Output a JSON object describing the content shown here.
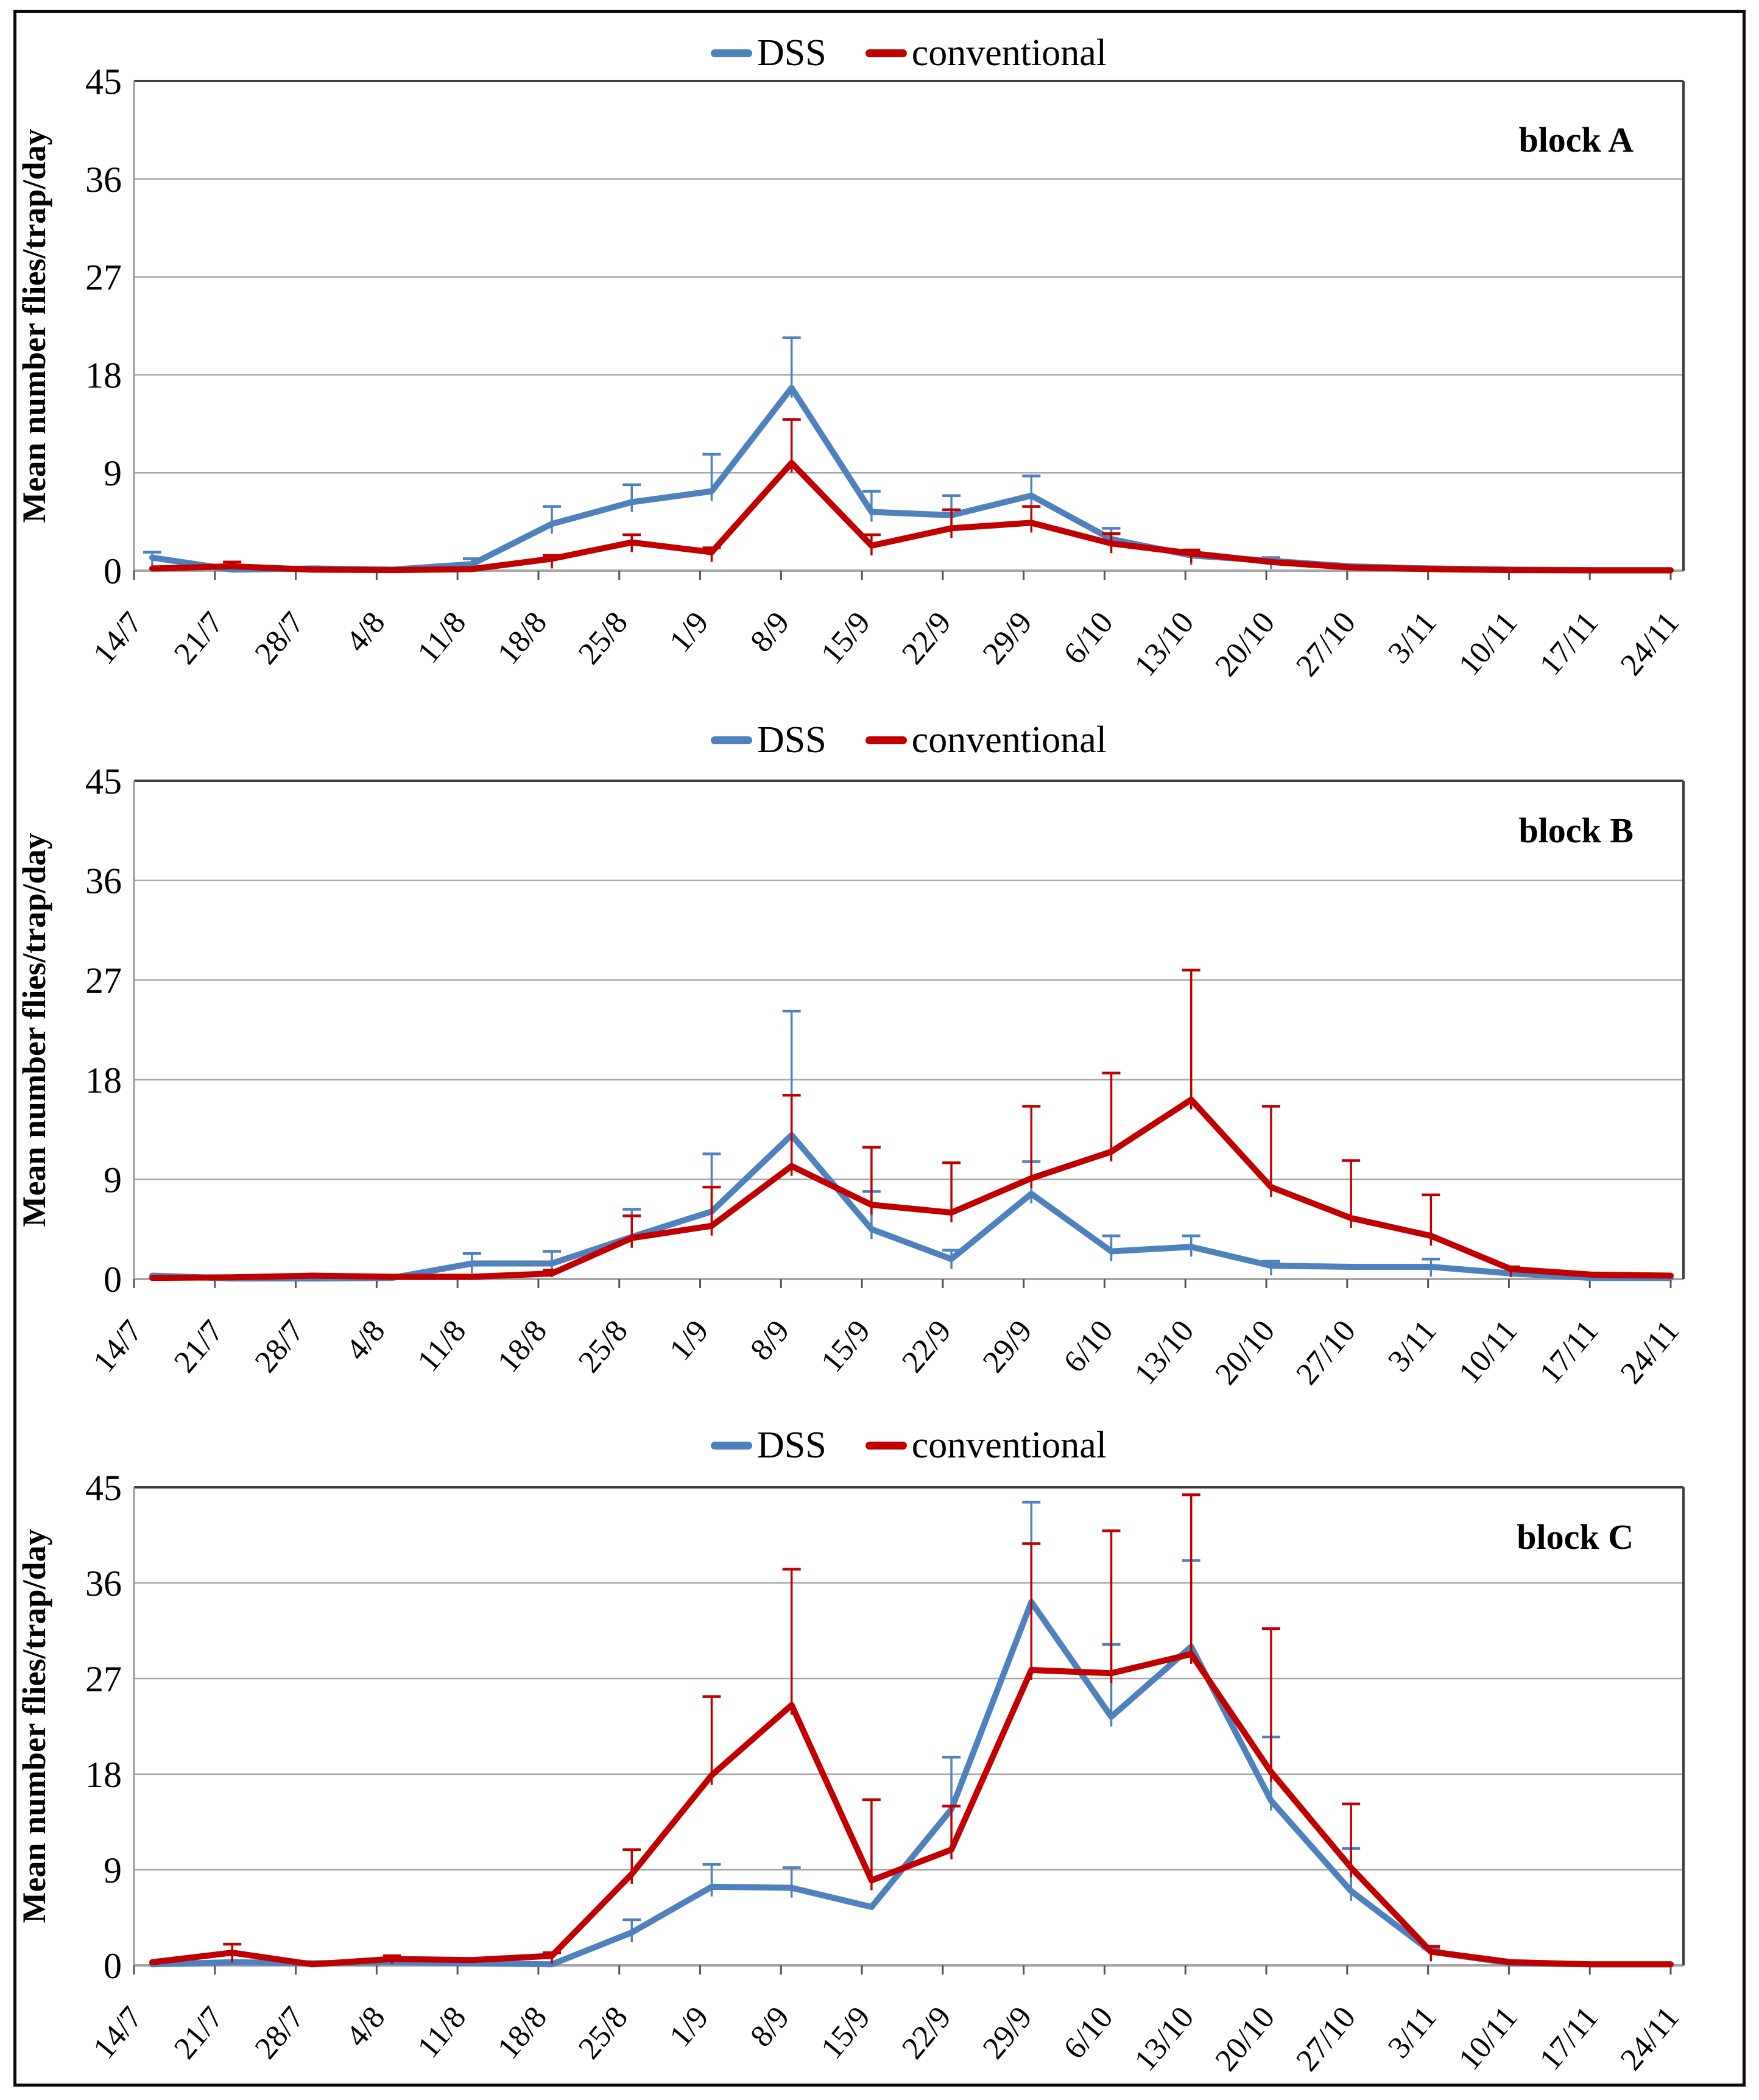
{
  "legend": {
    "dss_label": "DSS",
    "conventional_label": "conventional"
  },
  "colors": {
    "dss": "#4F81BD",
    "conventional": "#C00000",
    "gridline": "#A6A6A6",
    "axis_dark": "#3F3F3F",
    "axis_grey": "#999999",
    "tick": "#555555"
  },
  "y_axis": {
    "title": "Mean number flies/trap/day",
    "ticks": [
      0,
      9,
      18,
      27,
      36,
      45
    ],
    "max": 45
  },
  "chart_data": [
    {
      "type": "line",
      "block_label": "block A",
      "ylabel": "Mean number flies/trap/day",
      "ylim": [
        0,
        45
      ],
      "yticks": [
        0,
        9,
        18,
        27,
        36,
        45
      ],
      "grid": "horizontal",
      "legend_position": "top",
      "categories": [
        "14/7",
        "21/7",
        "28/7",
        "4/8",
        "11/8",
        "18/8",
        "25/8",
        "1/9",
        "8/9",
        "15/9",
        "22/9",
        "29/9",
        "6/10",
        "13/10",
        "20/10",
        "27/10",
        "3/11",
        "10/11",
        "17/11",
        "24/11"
      ],
      "series": [
        {
          "name": "DSS",
          "color": "#4F81BD",
          "values": [
            1.2,
            0.1,
            0.2,
            0.1,
            0.6,
            4.3,
            6.3,
            7.3,
            16.8,
            5.4,
            5.1,
            6.9,
            2.9,
            1.4,
            0.9,
            0.4,
            0.2,
            0.1,
            0.05,
            0.05
          ],
          "err_upper": [
            1.7,
            0.2,
            0.3,
            0.15,
            1.1,
            5.9,
            7.9,
            10.7,
            21.4,
            7.3,
            6.9,
            8.7,
            3.9,
            1.7,
            1.2,
            0.5,
            0.25,
            0.1,
            0.05,
            0.05
          ]
        },
        {
          "name": "conventional",
          "color": "#C00000",
          "values": [
            0.2,
            0.4,
            0.1,
            0.05,
            0.15,
            1.1,
            2.6,
            1.7,
            9.9,
            2.3,
            3.9,
            4.4,
            2.5,
            1.6,
            0.8,
            0.3,
            0.15,
            0.05,
            0.03,
            0.03
          ],
          "err_upper": [
            0.3,
            0.8,
            0.15,
            0.05,
            0.2,
            1.4,
            3.3,
            2.1,
            13.9,
            3.3,
            5.6,
            5.9,
            3.4,
            1.9,
            1.0,
            0.4,
            0.2,
            0.05,
            0.03,
            0.03
          ]
        }
      ]
    },
    {
      "type": "line",
      "block_label": "block B",
      "ylabel": "Mean number flies/trap/day",
      "ylim": [
        0,
        45
      ],
      "yticks": [
        0,
        9,
        18,
        27,
        36,
        45
      ],
      "grid": "horizontal",
      "legend_position": "top",
      "categories": [
        "14/7",
        "21/7",
        "28/7",
        "4/8",
        "11/8",
        "18/8",
        "25/8",
        "1/9",
        "8/9",
        "15/9",
        "22/9",
        "29/9",
        "6/10",
        "13/10",
        "20/10",
        "27/10",
        "3/11",
        "10/11",
        "17/11",
        "24/11"
      ],
      "series": [
        {
          "name": "DSS",
          "color": "#4F81BD",
          "values": [
            0.3,
            0.05,
            0.05,
            0.1,
            1.4,
            1.4,
            3.8,
            6.1,
            13.0,
            4.5,
            1.8,
            7.7,
            2.5,
            2.9,
            1.2,
            1.1,
            1.1,
            0.5,
            0.1,
            0.1
          ],
          "err_upper": [
            0.5,
            0.1,
            0.1,
            0.2,
            2.3,
            2.5,
            6.3,
            11.3,
            24.2,
            7.9,
            2.6,
            10.6,
            3.9,
            3.9,
            1.6,
            1.3,
            1.8,
            0.6,
            0.1,
            0.1
          ]
        },
        {
          "name": "conventional",
          "color": "#C00000",
          "values": [
            0.1,
            0.15,
            0.3,
            0.2,
            0.2,
            0.5,
            3.7,
            4.8,
            10.2,
            6.7,
            6.0,
            9.1,
            11.5,
            16.2,
            8.3,
            5.5,
            3.9,
            0.9,
            0.4,
            0.3
          ],
          "err_upper": [
            0.15,
            0.25,
            0.4,
            0.3,
            0.3,
            0.8,
            5.7,
            8.3,
            16.6,
            11.9,
            10.5,
            15.6,
            18.6,
            27.9,
            15.6,
            10.7,
            7.6,
            1.1,
            0.5,
            0.3
          ]
        }
      ]
    },
    {
      "type": "line",
      "block_label": "block C",
      "ylabel": "Mean number flies/trap/day",
      "ylim": [
        0,
        45
      ],
      "yticks": [
        0,
        9,
        18,
        27,
        36,
        45
      ],
      "grid": "horizontal",
      "legend_position": "top",
      "categories": [
        "14/7",
        "21/7",
        "28/7",
        "4/8",
        "11/8",
        "18/8",
        "25/8",
        "1/9",
        "8/9",
        "15/9",
        "22/9",
        "29/9",
        "6/10",
        "13/10",
        "20/10",
        "27/10",
        "3/11",
        "10/11",
        "17/11",
        "24/11"
      ],
      "series": [
        {
          "name": "DSS",
          "color": "#4F81BD",
          "values": [
            0.1,
            0.3,
            0.2,
            0.3,
            0.2,
            0.1,
            3.1,
            7.4,
            7.3,
            5.5,
            14.7,
            34.2,
            23.4,
            30.0,
            15.5,
            7.0,
            1.3,
            0.2,
            0.1,
            0.1
          ],
          "err_upper": [
            0.15,
            0.4,
            0.3,
            0.4,
            0.3,
            0.2,
            4.3,
            9.5,
            9.2,
            5.6,
            19.6,
            43.6,
            30.2,
            38.1,
            21.5,
            11.0,
            1.6,
            0.2,
            0.1,
            0.1
          ]
        },
        {
          "name": "conventional",
          "color": "#C00000",
          "values": [
            0.3,
            1.2,
            0.1,
            0.6,
            0.5,
            0.9,
            8.6,
            17.9,
            24.5,
            8.0,
            10.9,
            27.8,
            27.5,
            29.3,
            18.2,
            9.2,
            1.3,
            0.3,
            0.1,
            0.1
          ],
          "err_upper": [
            0.4,
            2.0,
            0.2,
            0.9,
            0.7,
            1.2,
            10.9,
            25.3,
            37.3,
            15.6,
            15.0,
            39.7,
            40.9,
            44.3,
            31.7,
            15.2,
            1.8,
            0.4,
            0.1,
            0.1
          ]
        }
      ]
    }
  ]
}
